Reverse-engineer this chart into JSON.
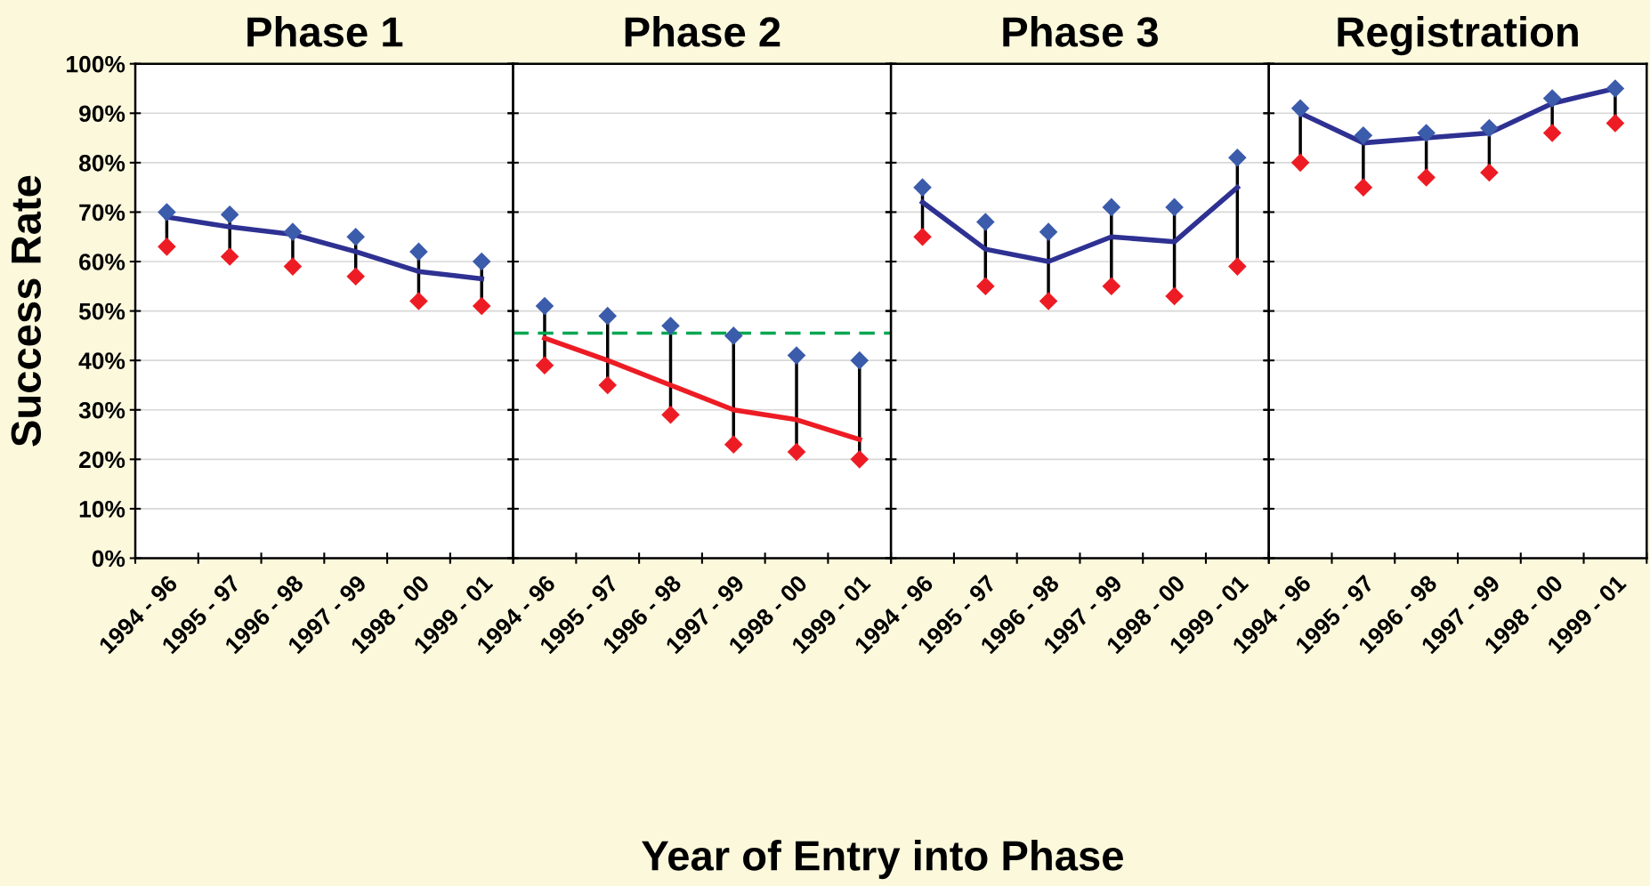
{
  "chart_data": [
    {
      "type": "line",
      "title": "Phase 1",
      "ylabel": "Success Rate",
      "xlabel": "Year of Entry into Phase",
      "categories": [
        "1994 - 96",
        "1995 - 97",
        "1996 - 98",
        "1997 - 99",
        "1998 - 00",
        "1999 - 01"
      ],
      "series": [
        {
          "color": "#2e3192",
          "marker": "none",
          "values": [
            69,
            67,
            65.5,
            62,
            58,
            56.5
          ]
        },
        {
          "type": "scatter",
          "color": "#3b5bab",
          "marker": "diamond",
          "values": [
            70,
            69.5,
            66,
            65,
            62,
            60
          ]
        },
        {
          "type": "scatter",
          "color": "#ed1c24",
          "marker": "diamond",
          "values": [
            63,
            61,
            59,
            57,
            52,
            51
          ]
        }
      ],
      "ylim": [
        0,
        100
      ],
      "yticks": [
        {
          "value": 0,
          "label": "0%"
        },
        {
          "value": 10,
          "label": "10%"
        },
        {
          "value": 20,
          "label": "20%"
        },
        {
          "value": 30,
          "label": "30%"
        },
        {
          "value": 40,
          "label": "40%"
        },
        {
          "value": 50,
          "label": "50%"
        },
        {
          "value": 60,
          "label": "60%"
        },
        {
          "value": 70,
          "label": "70%"
        },
        {
          "value": 80,
          "label": "80%"
        },
        {
          "value": 90,
          "label": "90%"
        },
        {
          "value": 100,
          "label": "100%"
        }
      ],
      "grid": "y"
    },
    {
      "type": "line",
      "title": "Phase 2",
      "categories": [
        "1994 - 96",
        "1995 - 97",
        "1996 - 98",
        "1997 - 99",
        "1998 - 00",
        "1999 - 01"
      ],
      "series": [
        {
          "color": "#ed1c24",
          "marker": "none",
          "values": [
            44.5,
            40,
            35,
            30,
            28,
            24
          ]
        },
        {
          "type": "scatter",
          "color": "#3b5bab",
          "marker": "diamond",
          "values": [
            51,
            49,
            47,
            45,
            41,
            40
          ]
        },
        {
          "type": "scatter",
          "color": "#ed1c24",
          "marker": "diamond",
          "values": [
            39,
            35,
            29,
            23,
            21.5,
            20
          ]
        }
      ],
      "ylim": [
        0,
        100
      ],
      "yticks": [
        0,
        10,
        20,
        30,
        40,
        50,
        60,
        70,
        80,
        90,
        100
      ],
      "ref_lines": [
        {
          "axis": "y",
          "value": 45.5,
          "color": "#00a651",
          "line_style": "dashed"
        }
      ],
      "tick_labels": "x",
      "grid": "y"
    },
    {
      "type": "line",
      "title": "Phase 3",
      "categories": [
        "1994 - 96",
        "1995 - 97",
        "1996 - 98",
        "1997 - 99",
        "1998 - 00",
        "1999 - 01"
      ],
      "series": [
        {
          "color": "#2e3192",
          "marker": "none",
          "values": [
            72,
            62.5,
            60,
            65,
            64,
            75
          ]
        },
        {
          "type": "scatter",
          "color": "#3b5bab",
          "marker": "diamond",
          "values": [
            75,
            68,
            66,
            71,
            71,
            81
          ]
        },
        {
          "type": "scatter",
          "color": "#ed1c24",
          "marker": "diamond",
          "values": [
            65,
            55,
            52,
            55,
            53,
            59
          ]
        }
      ],
      "ylim": [
        0,
        100
      ],
      "yticks": [
        0,
        10,
        20,
        30,
        40,
        50,
        60,
        70,
        80,
        90,
        100
      ],
      "tick_labels": "x",
      "grid": "y"
    },
    {
      "type": "line",
      "title": "Registration",
      "categories": [
        "1994 - 96",
        "1995 - 97",
        "1996 - 98",
        "1997 - 99",
        "1998 - 00",
        "1999 - 01"
      ],
      "series": [
        {
          "color": "#2e3192",
          "marker": "none",
          "values": [
            90,
            84,
            85,
            86,
            92,
            95
          ]
        },
        {
          "type": "scatter",
          "color": "#3b5bab",
          "marker": "diamond",
          "values": [
            91,
            85.5,
            86,
            87,
            93,
            95
          ]
        },
        {
          "type": "scatter",
          "color": "#ed1c24",
          "marker": "diamond",
          "values": [
            80,
            75,
            77,
            78,
            86,
            88
          ]
        }
      ],
      "ylim": [
        0,
        100
      ],
      "yticks": [
        0,
        10,
        20,
        30,
        40,
        50,
        60,
        70,
        80,
        90,
        100
      ],
      "tick_labels": "x",
      "grid": "y"
    }
  ]
}
